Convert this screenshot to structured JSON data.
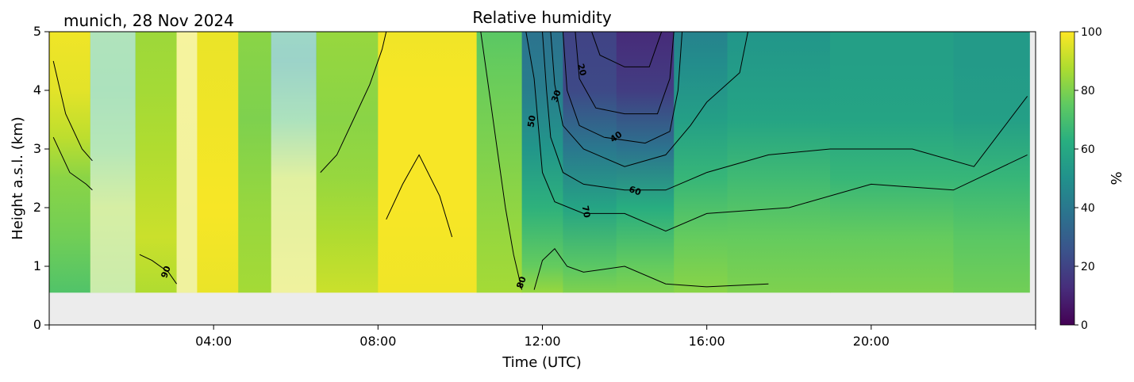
{
  "chart_data": {
    "type": "heatmap",
    "title": "Relative humidity",
    "subtitle": "munich, 28 Nov 2024",
    "xlabel": "Time (UTC)",
    "ylabel": "Height a.s.l. (km)",
    "xlim": [
      0,
      24
    ],
    "ylim": [
      0,
      5
    ],
    "x_ticks": [
      {
        "value": 4,
        "label": "04:00"
      },
      {
        "value": 8,
        "label": "08:00"
      },
      {
        "value": 12,
        "label": "12:00"
      },
      {
        "value": 16,
        "label": "16:00"
      },
      {
        "value": 20,
        "label": "20:00"
      }
    ],
    "y_ticks": [
      {
        "value": 0,
        "label": "0"
      },
      {
        "value": 1,
        "label": "1"
      },
      {
        "value": 2,
        "label": "2"
      },
      {
        "value": 3,
        "label": "3"
      },
      {
        "value": 4,
        "label": "4"
      },
      {
        "value": 5,
        "label": "5"
      }
    ],
    "data_floor_km": 0.55,
    "colorbar": {
      "label": "%",
      "range": [
        0,
        100
      ],
      "colormap": "viridis",
      "ticks": [
        {
          "value": 0,
          "label": "0"
        },
        {
          "value": 20,
          "label": "20"
        },
        {
          "value": 40,
          "label": "40"
        },
        {
          "value": 60,
          "label": "60"
        },
        {
          "value": 80,
          "label": "80"
        },
        {
          "value": 100,
          "label": "100"
        }
      ]
    },
    "columns": [
      {
        "t0": 0.0,
        "t1": 1.0,
        "profile": [
          [
            0.55,
            72
          ],
          [
            1.5,
            78
          ],
          [
            2.5,
            82
          ],
          [
            3.2,
            90
          ],
          [
            4.0,
            96
          ],
          [
            5.0,
            98
          ]
        ]
      },
      {
        "t0": 1.0,
        "t1": 2.1,
        "masked": true,
        "profile": [
          [
            0.55,
            82
          ],
          [
            2.0,
            86
          ],
          [
            3.0,
            75
          ],
          [
            4.0,
            70
          ],
          [
            5.0,
            72
          ]
        ]
      },
      {
        "t0": 2.1,
        "t1": 3.1,
        "profile": [
          [
            0.55,
            88
          ],
          [
            1.5,
            92
          ],
          [
            3.0,
            88
          ],
          [
            4.0,
            86
          ],
          [
            5.0,
            85
          ]
        ]
      },
      {
        "t0": 3.1,
        "t1": 3.6,
        "masked": true,
        "profile": [
          [
            0.55,
            95
          ],
          [
            5.0,
            97
          ]
        ]
      },
      {
        "t0": 3.6,
        "t1": 4.6,
        "profile": [
          [
            0.55,
            97
          ],
          [
            2.0,
            99
          ],
          [
            3.5,
            98
          ],
          [
            5.0,
            97
          ]
        ]
      },
      {
        "t0": 4.6,
        "t1": 5.4,
        "profile": [
          [
            0.55,
            86
          ],
          [
            2.0,
            84
          ],
          [
            3.5,
            80
          ],
          [
            5.0,
            82
          ]
        ]
      },
      {
        "t0": 5.4,
        "t1": 6.5,
        "masked": true,
        "profile": [
          [
            0.55,
            95
          ],
          [
            2.5,
            90
          ],
          [
            3.5,
            70
          ],
          [
            4.5,
            55
          ],
          [
            5.0,
            60
          ]
        ]
      },
      {
        "t0": 6.5,
        "t1": 8.0,
        "profile": [
          [
            0.55,
            92
          ],
          [
            1.5,
            88
          ],
          [
            2.5,
            84
          ],
          [
            3.5,
            82
          ],
          [
            5.0,
            84
          ]
        ]
      },
      {
        "t0": 8.0,
        "t1": 10.4,
        "profile": [
          [
            0.55,
            98
          ],
          [
            2.0,
            99
          ],
          [
            4.0,
            99
          ],
          [
            5.0,
            98
          ]
        ]
      },
      {
        "t0": 10.4,
        "t1": 11.5,
        "profile": [
          [
            0.55,
            86
          ],
          [
            1.5,
            84
          ],
          [
            3.0,
            80
          ],
          [
            4.5,
            76
          ],
          [
            5.0,
            74
          ]
        ]
      },
      {
        "t0": 11.5,
        "t1": 12.5,
        "profile": [
          [
            0.55,
            84
          ],
          [
            1.0,
            76
          ],
          [
            2.0,
            64
          ],
          [
            3.0,
            52
          ],
          [
            4.0,
            42
          ],
          [
            5.0,
            38
          ]
        ]
      },
      {
        "t0": 12.5,
        "t1": 13.8,
        "profile": [
          [
            0.55,
            80
          ],
          [
            1.0,
            74
          ],
          [
            2.0,
            58
          ],
          [
            3.0,
            40
          ],
          [
            4.0,
            22
          ],
          [
            5.0,
            20
          ]
        ]
      },
      {
        "t0": 13.8,
        "t1": 15.2,
        "profile": [
          [
            0.55,
            80
          ],
          [
            1.0,
            76
          ],
          [
            2.0,
            62
          ],
          [
            3.0,
            38
          ],
          [
            4.0,
            18
          ],
          [
            5.0,
            12
          ]
        ]
      },
      {
        "t0": 15.2,
        "t1": 16.5,
        "profile": [
          [
            0.55,
            82
          ],
          [
            1.5,
            76
          ],
          [
            2.5,
            66
          ],
          [
            3.5,
            56
          ],
          [
            4.5,
            48
          ],
          [
            5.0,
            44
          ]
        ]
      },
      {
        "t0": 16.5,
        "t1": 19.0,
        "profile": [
          [
            0.55,
            80
          ],
          [
            1.5,
            76
          ],
          [
            2.5,
            68
          ],
          [
            3.5,
            58
          ],
          [
            4.5,
            54
          ],
          [
            5.0,
            52
          ]
        ]
      },
      {
        "t0": 19.0,
        "t1": 22.0,
        "profile": [
          [
            0.55,
            80
          ],
          [
            1.5,
            76
          ],
          [
            2.5,
            66
          ],
          [
            3.5,
            58
          ],
          [
            4.5,
            56
          ],
          [
            5.0,
            56
          ]
        ]
      },
      {
        "t0": 22.0,
        "t1": 23.85,
        "profile": [
          [
            0.55,
            78
          ],
          [
            1.5,
            74
          ],
          [
            2.5,
            66
          ],
          [
            3.5,
            56
          ],
          [
            4.5,
            54
          ],
          [
            5.0,
            54
          ]
        ]
      }
    ],
    "contours": [
      {
        "level": 90,
        "points": [
          [
            0.1,
            4.5
          ],
          [
            0.4,
            3.6
          ],
          [
            0.8,
            3.0
          ],
          [
            1.05,
            2.8
          ]
        ]
      },
      {
        "level": 90,
        "points": [
          [
            2.2,
            1.2
          ],
          [
            2.5,
            1.1
          ],
          [
            2.9,
            0.9
          ],
          [
            3.1,
            0.7
          ]
        ]
      },
      {
        "level": 90,
        "points": [
          [
            6.6,
            2.6
          ],
          [
            7.0,
            2.9
          ],
          [
            7.4,
            3.5
          ],
          [
            7.8,
            4.1
          ],
          [
            8.1,
            4.7
          ],
          [
            8.2,
            5.0
          ]
        ]
      },
      {
        "level": 90,
        "points": [
          [
            8.2,
            1.8
          ],
          [
            8.6,
            2.4
          ],
          [
            9.0,
            2.9
          ],
          [
            9.5,
            2.2
          ],
          [
            9.8,
            1.5
          ]
        ]
      },
      {
        "level": 80,
        "points": [
          [
            0.1,
            3.2
          ],
          [
            0.5,
            2.6
          ],
          [
            0.9,
            2.4
          ],
          [
            1.05,
            2.3
          ]
        ]
      },
      {
        "level": 80,
        "points": [
          [
            10.5,
            5.0
          ],
          [
            10.7,
            4.0
          ],
          [
            10.9,
            3.0
          ],
          [
            11.1,
            2.0
          ],
          [
            11.3,
            1.2
          ],
          [
            11.5,
            0.6
          ]
        ]
      },
      {
        "level": 80,
        "points": [
          [
            11.8,
            0.6
          ],
          [
            12.0,
            1.1
          ],
          [
            12.3,
            1.3
          ],
          [
            12.6,
            1.0
          ],
          [
            13.0,
            0.9
          ],
          [
            14.0,
            1.0
          ],
          [
            15.0,
            0.7
          ],
          [
            16.0,
            0.65
          ],
          [
            17.5,
            0.7
          ]
        ]
      },
      {
        "level": 70,
        "points": [
          [
            11.6,
            5.0
          ],
          [
            11.8,
            4.2
          ],
          [
            11.9,
            3.4
          ],
          [
            12.0,
            2.6
          ],
          [
            12.3,
            2.1
          ],
          [
            13.0,
            1.9
          ],
          [
            14.0,
            1.9
          ],
          [
            15.0,
            1.6
          ],
          [
            16.0,
            1.9
          ],
          [
            18.0,
            2.0
          ],
          [
            20.0,
            2.4
          ],
          [
            22.0,
            2.3
          ],
          [
            23.8,
            2.9
          ]
        ]
      },
      {
        "level": 60,
        "points": [
          [
            12.0,
            5.0
          ],
          [
            12.1,
            4.0
          ],
          [
            12.2,
            3.2
          ],
          [
            12.5,
            2.6
          ],
          [
            13.0,
            2.4
          ],
          [
            14.0,
            2.3
          ],
          [
            15.0,
            2.3
          ],
          [
            16.0,
            2.6
          ],
          [
            17.5,
            2.9
          ],
          [
            19.0,
            3.0
          ],
          [
            21.0,
            3.0
          ],
          [
            22.5,
            2.7
          ],
          [
            23.8,
            3.9
          ]
        ]
      },
      {
        "level": 50,
        "points": [
          [
            12.2,
            5.0
          ],
          [
            12.3,
            4.1
          ],
          [
            12.5,
            3.4
          ],
          [
            13.0,
            3.0
          ],
          [
            14.0,
            2.7
          ],
          [
            15.0,
            2.9
          ],
          [
            15.6,
            3.4
          ],
          [
            16.0,
            3.8
          ],
          [
            16.8,
            4.3
          ],
          [
            17.0,
            5.0
          ]
        ]
      },
      {
        "level": 40,
        "points": [
          [
            12.5,
            5.0
          ],
          [
            12.6,
            4.0
          ],
          [
            12.9,
            3.4
          ],
          [
            13.5,
            3.2
          ],
          [
            14.5,
            3.1
          ],
          [
            15.1,
            3.3
          ],
          [
            15.3,
            4.0
          ],
          [
            15.4,
            5.0
          ]
        ]
      },
      {
        "level": 30,
        "points": [
          [
            12.8,
            5.0
          ],
          [
            12.9,
            4.2
          ],
          [
            13.3,
            3.7
          ],
          [
            14.0,
            3.6
          ],
          [
            14.8,
            3.6
          ],
          [
            15.1,
            4.2
          ],
          [
            15.2,
            5.0
          ]
        ]
      },
      {
        "level": 20,
        "points": [
          [
            13.2,
            5.0
          ],
          [
            13.4,
            4.6
          ],
          [
            14.0,
            4.4
          ],
          [
            14.6,
            4.4
          ],
          [
            14.8,
            4.8
          ],
          [
            14.9,
            5.0
          ]
        ]
      }
    ],
    "contour_labels": [
      {
        "text": "90",
        "x": 2.85,
        "y": 0.9,
        "rotate": -70
      },
      {
        "text": "80",
        "x": 11.5,
        "y": 0.72,
        "rotate": -70
      },
      {
        "text": "70",
        "x": 13.05,
        "y": 1.93,
        "rotate": 80
      },
      {
        "text": "60",
        "x": 14.25,
        "y": 2.28,
        "rotate": 20
      },
      {
        "text": "50",
        "x": 11.75,
        "y": 3.47,
        "rotate": -80
      },
      {
        "text": "40",
        "x": 13.8,
        "y": 3.2,
        "rotate": -35
      },
      {
        "text": "30",
        "x": 12.35,
        "y": 3.9,
        "rotate": -70
      },
      {
        "text": "20",
        "x": 12.95,
        "y": 4.35,
        "rotate": 75
      }
    ]
  }
}
